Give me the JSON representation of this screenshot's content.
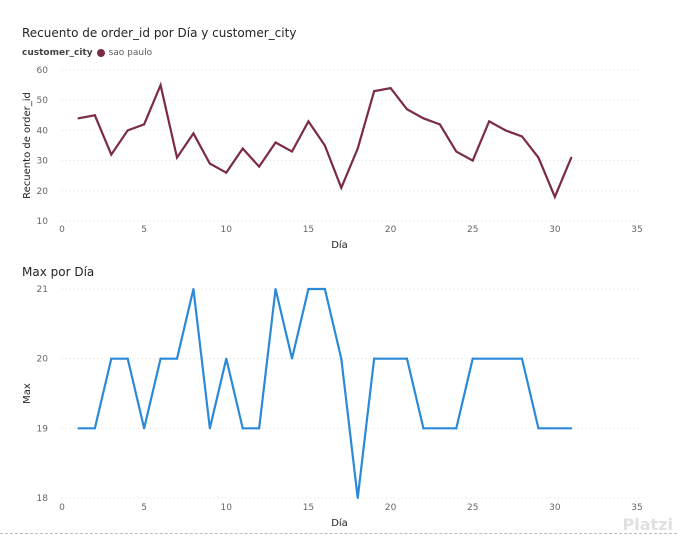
{
  "chart_data": [
    {
      "type": "line",
      "title": "Recuento de order_id por Día y customer_city",
      "legend_title": "customer_city",
      "legend_placement": "top-left",
      "xlabel": "Día",
      "ylabel": "Recuento de order_id",
      "xlim": [
        0,
        35
      ],
      "ylim": [
        10,
        60
      ],
      "xticks": [
        0,
        5,
        10,
        15,
        20,
        25,
        30,
        35
      ],
      "yticks": [
        10,
        20,
        30,
        40,
        50,
        60
      ],
      "grid": true,
      "series": [
        {
          "name": "sao paulo",
          "color": "#7b2a49",
          "x": [
            1,
            2,
            3,
            4,
            5,
            6,
            7,
            8,
            9,
            10,
            11,
            12,
            13,
            14,
            15,
            16,
            17,
            18,
            19,
            20,
            21,
            22,
            23,
            24,
            25,
            26,
            27,
            28,
            29,
            30,
            31
          ],
          "y": [
            44,
            45,
            32,
            40,
            42,
            55,
            31,
            39,
            29,
            26,
            34,
            28,
            36,
            33,
            43,
            35,
            21,
            34,
            53,
            54,
            47,
            44,
            42,
            33,
            30,
            43,
            40,
            38,
            31,
            18,
            31
          ]
        }
      ]
    },
    {
      "type": "line",
      "title": "Max por Día",
      "xlabel": "Día",
      "ylabel": "Max",
      "xlim": [
        0,
        35
      ],
      "ylim": [
        18,
        21
      ],
      "xticks": [
        0,
        5,
        10,
        15,
        20,
        25,
        30,
        35
      ],
      "yticks": [
        18,
        19,
        20,
        21
      ],
      "grid": true,
      "series": [
        {
          "color": "#2b8ad8",
          "x": [
            1,
            2,
            3,
            4,
            5,
            6,
            7,
            8,
            9,
            10,
            11,
            12,
            13,
            14,
            15,
            16,
            17,
            18,
            19,
            20,
            21,
            22,
            23,
            24,
            25,
            26,
            27,
            28,
            29,
            30,
            31
          ],
          "y": [
            19,
            19,
            20,
            20,
            19,
            20,
            20,
            21,
            19,
            20,
            19,
            19,
            21,
            20,
            21,
            21,
            20,
            18,
            20,
            20,
            20,
            19,
            19,
            19,
            20,
            20,
            20,
            20,
            19,
            19,
            19
          ]
        }
      ]
    }
  ],
  "watermark": "Platzi"
}
